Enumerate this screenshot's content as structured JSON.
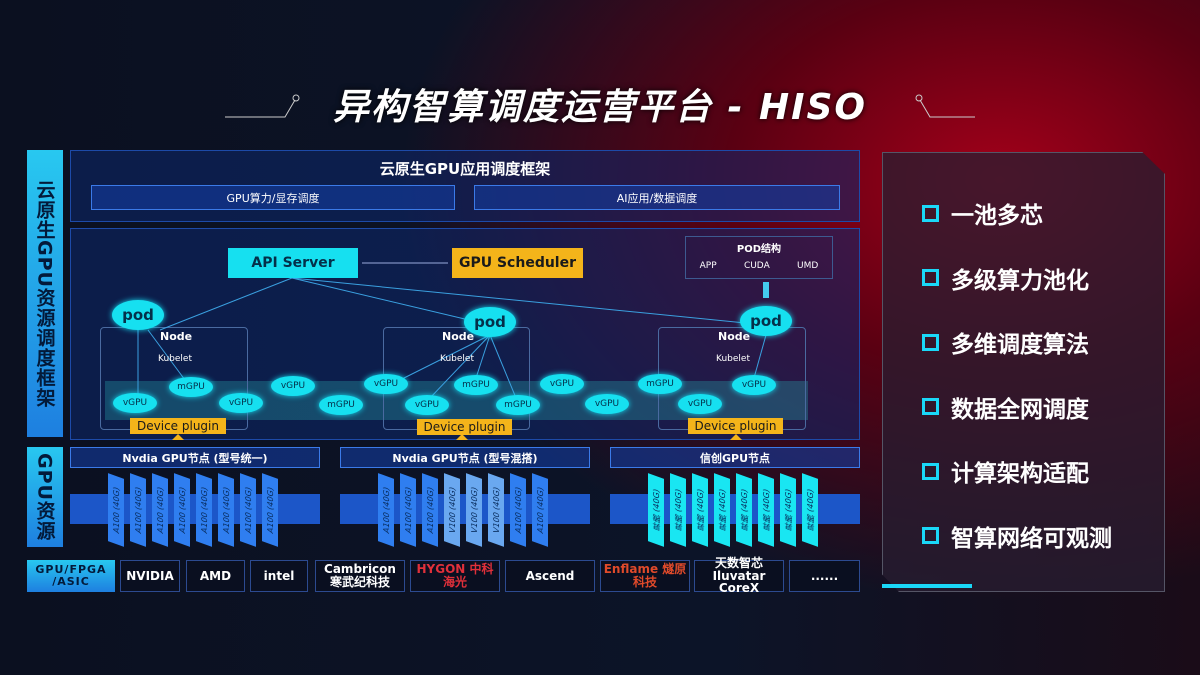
{
  "title": "异构智算调度运营平台 - HISO",
  "left_labels": {
    "framework": "云原生GPU资源调度框架",
    "resources": "GPU资源"
  },
  "top_panel": {
    "title": "云原生GPU应用调度框架",
    "bars": [
      "GPU算力/显存调度",
      "AI应用/数据调度"
    ]
  },
  "diagram": {
    "api_server": "API Server",
    "gpu_scheduler": "GPU Scheduler",
    "pod_structure": {
      "title": "POD结构",
      "items": [
        "APP",
        "CUDA",
        "UMD"
      ]
    },
    "pod": "pod",
    "node": "Node",
    "kubelet": "Kubelet",
    "device_plugin": "Device plugin",
    "gpus": [
      "vGPU",
      "mGPU",
      "vGPU",
      "vGPU",
      "mGPU",
      "vGPU",
      "vGPU",
      "mGPU",
      "mGPU",
      "vGPU",
      "vGPU",
      "mGPU",
      "vGPU",
      "vGPU"
    ]
  },
  "gpu_nodes": [
    {
      "title": "Nvdia GPU节点 (型号统一)",
      "cards": [
        "A100 (40G)",
        "A100 (40G)",
        "A100 (40G)",
        "A100 (40G)",
        "A100 (40G)",
        "A100 (40G)",
        "A100 (40G)",
        "A100 (40G)"
      ]
    },
    {
      "title": "Nvdia GPU节点 (型号混搭)",
      "cards": [
        "A100 (40G)",
        "A100 (40G)",
        "A100 (40G)",
        "V100 (40G)",
        "V100 (40G)",
        "V100 (40G)",
        "A100 (40G)",
        "A100 (40G)"
      ]
    },
    {
      "title": "信创GPU节点",
      "cards": [
        "昇腾 (40G)",
        "昇腾 (40G)",
        "昇腾 (40G)",
        "昇腾 (40G)",
        "昇腾 (40G)",
        "昇腾 (40G)",
        "昇腾 (40G)",
        "昇腾 (40G)"
      ]
    }
  ],
  "vendors": {
    "label": "GPU/FPGA /ASIC",
    "items": [
      "NVIDIA",
      "AMD",
      "intel",
      "Cambricon 寒武纪科技",
      "HYGON 中科海光",
      "Ascend",
      "Enflame 燧原科技",
      "天数智芯 Iluvatar CoreX",
      "......"
    ]
  },
  "features": [
    "一池多芯",
    "多级算力池化",
    "多维调度算法",
    "数据全网调度",
    "计算架构适配",
    "智算网络可观测"
  ],
  "colors": {
    "cyan": "#16e0f0",
    "orange": "#f4b41a",
    "blue": "#1e6fe8",
    "red": "#a3001a"
  }
}
